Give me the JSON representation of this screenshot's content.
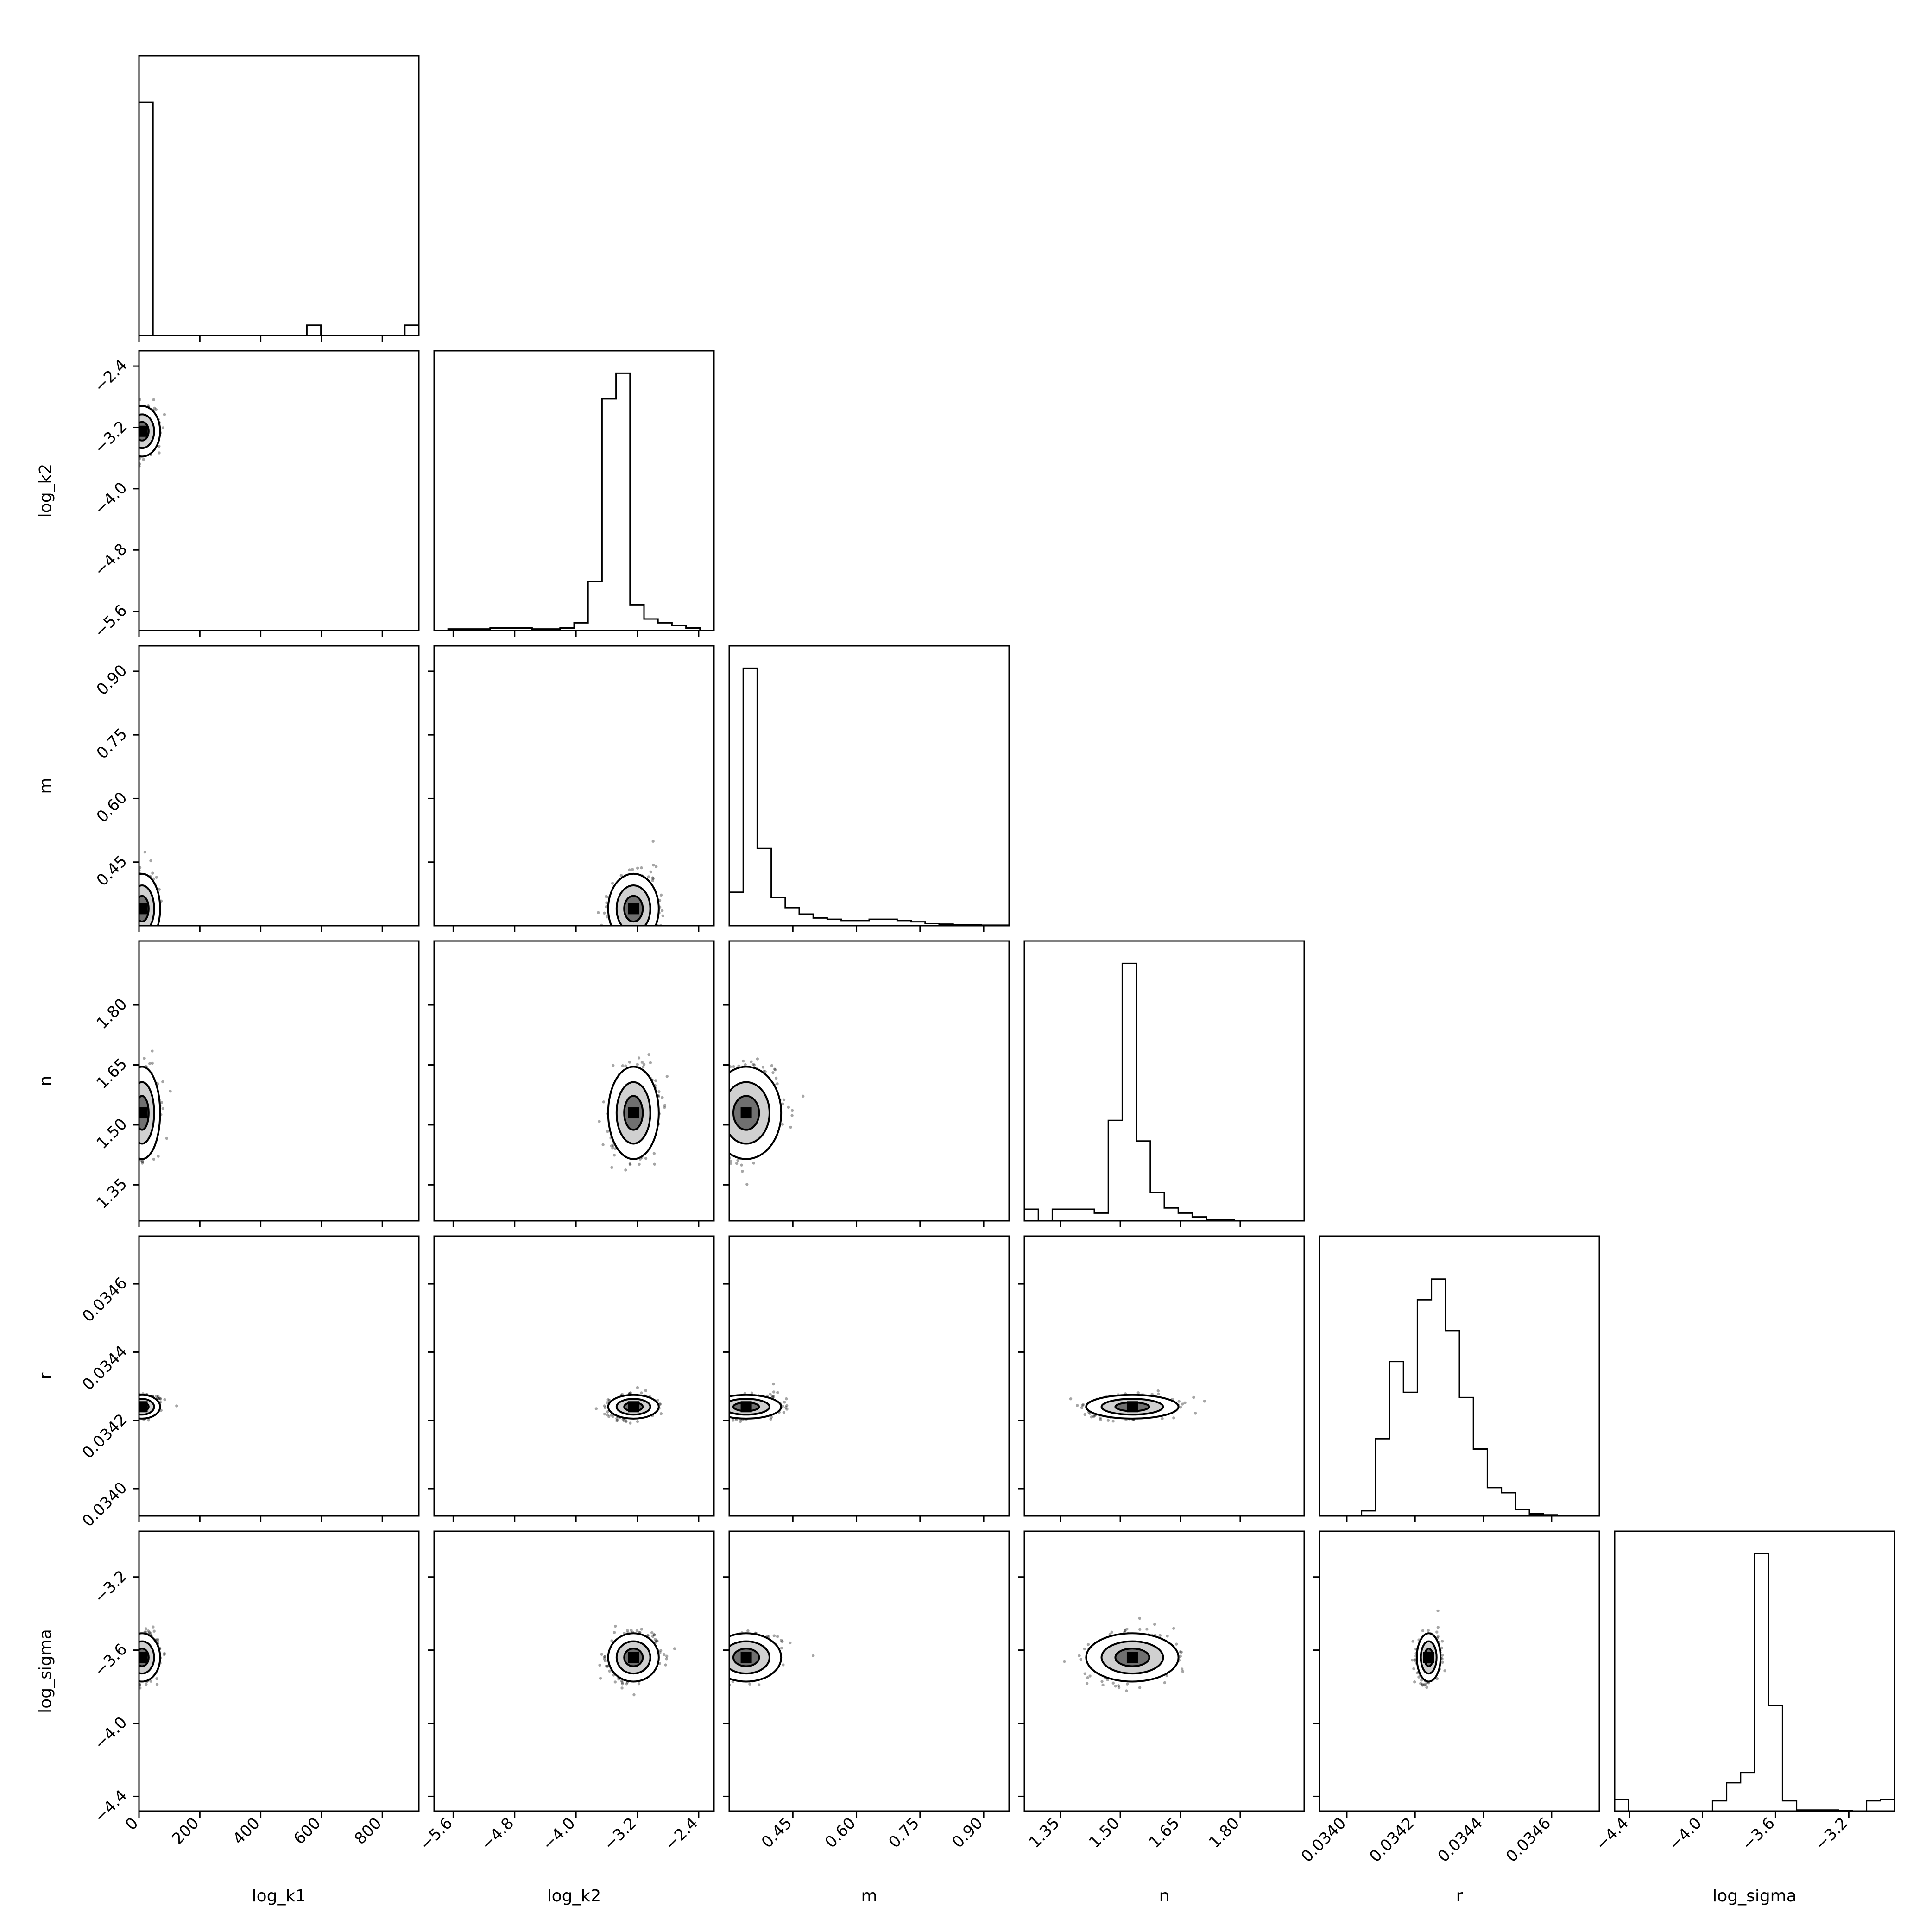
{
  "chart_data": {
    "type": "corner",
    "title": "",
    "parameters": [
      "log_k1",
      "log_k2",
      "m",
      "n",
      "r",
      "log_sigma"
    ],
    "axis_ranges": {
      "log_k1": [
        0,
        920
      ],
      "log_k2": [
        -5.85,
        -2.2
      ],
      "m": [
        0.3,
        0.96
      ],
      "n": [
        1.26,
        1.96
      ],
      "r": [
        0.03392,
        0.03474
      ],
      "log_sigma": [
        -4.48,
        -2.95
      ]
    },
    "ticks": {
      "log_k1": {
        "values": [
          0,
          200,
          400,
          600,
          800
        ],
        "labels": [
          "0",
          "200",
          "400",
          "600",
          "800"
        ]
      },
      "log_k2": {
        "values": [
          -5.6,
          -4.8,
          -4.0,
          -3.2,
          -2.4
        ],
        "labels": [
          "−5.6",
          "−4.8",
          "−4.0",
          "−3.2",
          "−2.4"
        ]
      },
      "m": {
        "values": [
          0.45,
          0.6,
          0.75,
          0.9
        ],
        "labels": [
          "0.45",
          "0.60",
          "0.75",
          "0.90"
        ]
      },
      "n": {
        "values": [
          1.35,
          1.5,
          1.65,
          1.8
        ],
        "labels": [
          "1.35",
          "1.50",
          "1.65",
          "1.80"
        ]
      },
      "r": {
        "values": [
          0.034,
          0.0342,
          0.0344,
          0.0346
        ],
        "labels": [
          "0.0340",
          "0.0342",
          "0.0344",
          "0.0346"
        ]
      },
      "log_sigma": {
        "values": [
          -4.4,
          -4.0,
          -3.6,
          -3.2
        ],
        "labels": [
          "−4.4",
          "−4.0",
          "−3.6",
          "−3.2"
        ]
      }
    },
    "histograms": {
      "log_k1": [
        0.905,
        0,
        0,
        0,
        0,
        0,
        0,
        0,
        0,
        0,
        0,
        0,
        0.04,
        0,
        0,
        0,
        0,
        0,
        0,
        0.04
      ],
      "log_k2": [
        0,
        0.006,
        0.006,
        0.006,
        0.01,
        0.01,
        0.01,
        0.006,
        0.006,
        0.01,
        0.03,
        0.19,
        0.9,
        1.0,
        0.1,
        0.045,
        0.03,
        0.02,
        0.01,
        0
      ],
      "m": [
        0.13,
        1.0,
        0.3,
        0.11,
        0.07,
        0.045,
        0.03,
        0.025,
        0.02,
        0.02,
        0.025,
        0.025,
        0.02,
        0.015,
        0.008,
        0.006,
        0.004,
        0.003,
        0.002,
        0.002
      ],
      "n": [
        0.045,
        0,
        0.045,
        0.045,
        0.045,
        0.03,
        0.39,
        1.0,
        0.31,
        0.11,
        0.05,
        0.03,
        0.015,
        0.006,
        0.003,
        0.001,
        0,
        0,
        0,
        0
      ],
      "r": [
        0,
        0,
        0,
        0.02,
        0.3,
        0.6,
        0.48,
        0.84,
        0.92,
        0.72,
        0.46,
        0.26,
        0.11,
        0.09,
        0.025,
        0.008,
        0.004,
        0,
        0,
        0
      ],
      "log_sigma": [
        0.045,
        0,
        0,
        0,
        0,
        0,
        0,
        0.04,
        0.11,
        0.15,
        1.0,
        0.41,
        0.04,
        0.004,
        0.004,
        0.004,
        0.002,
        0,
        0.04,
        0.045
      ]
    },
    "modes": {
      "log_k1": 10,
      "log_k2": -3.25,
      "m": 0.34,
      "n": 1.53,
      "r": 0.03424,
      "log_sigma": -3.64
    },
    "spreads": {
      "log_k1": 18,
      "log_k2": 0.1,
      "m": 0.025,
      "n": 0.035,
      "r": 1.05e-05,
      "log_sigma": 0.04
    },
    "grid": false,
    "legend": "none"
  }
}
